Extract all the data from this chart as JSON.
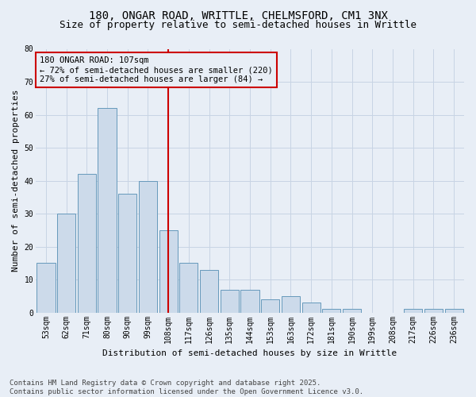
{
  "title_line1": "180, ONGAR ROAD, WRITTLE, CHELMSFORD, CM1 3NX",
  "title_line2": "Size of property relative to semi-detached houses in Writtle",
  "xlabel": "Distribution of semi-detached houses by size in Writtle",
  "ylabel": "Number of semi-detached properties",
  "categories": [
    "53sqm",
    "62sqm",
    "71sqm",
    "80sqm",
    "90sqm",
    "99sqm",
    "108sqm",
    "117sqm",
    "126sqm",
    "135sqm",
    "144sqm",
    "153sqm",
    "163sqm",
    "172sqm",
    "181sqm",
    "190sqm",
    "199sqm",
    "208sqm",
    "217sqm",
    "226sqm",
    "236sqm"
  ],
  "values": [
    15,
    30,
    42,
    62,
    36,
    40,
    25,
    15,
    13,
    7,
    7,
    4,
    5,
    3,
    1,
    1,
    0,
    0,
    1,
    1,
    1
  ],
  "bar_color": "#ccdaea",
  "bar_edge_color": "#6699bb",
  "vline_x": 6,
  "vline_color": "#cc0000",
  "annotation_text": "180 ONGAR ROAD: 107sqm\n← 72% of semi-detached houses are smaller (220)\n27% of semi-detached houses are larger (84) →",
  "annotation_box_color": "#cc0000",
  "ylim": [
    0,
    80
  ],
  "yticks": [
    0,
    10,
    20,
    30,
    40,
    50,
    60,
    70,
    80
  ],
  "grid_color": "#c8d4e4",
  "background_color": "#e8eef6",
  "footer_text": "Contains HM Land Registry data © Crown copyright and database right 2025.\nContains public sector information licensed under the Open Government Licence v3.0.",
  "title_fontsize": 10,
  "subtitle_fontsize": 9,
  "label_fontsize": 8,
  "tick_fontsize": 7,
  "annot_fontsize": 7.5,
  "footer_fontsize": 6.5
}
